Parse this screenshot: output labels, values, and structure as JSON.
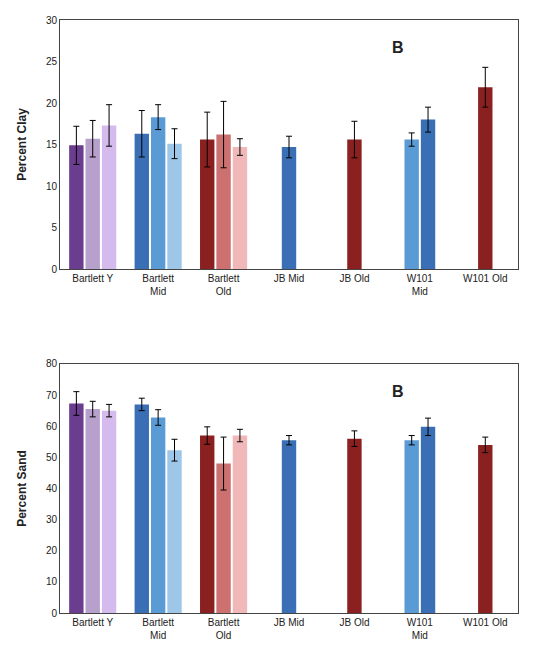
{
  "chart_data": [
    {
      "type": "bar",
      "title": "B",
      "ylabel": "Percent Clay",
      "categories": [
        "Bartlett Y",
        "Bartlett\nMid",
        "Bartlett\nOld",
        "JB Mid",
        "JB Old",
        "W101\nMid",
        "W101 Old"
      ],
      "series": [
        {
          "colors": [
            "#6a3d8f",
            "#3a6fb5",
            "#8b2020",
            "#3a6fb5",
            "#8b2020",
            "#5b9bd5",
            "#8b2020"
          ],
          "values": [
            14.9,
            16.3,
            15.6,
            14.7,
            15.6,
            15.6,
            21.9
          ],
          "errors": [
            2.3,
            2.8,
            3.3,
            1.3,
            2.2,
            0.8,
            2.4
          ]
        },
        {
          "colors": [
            "#b8a0cc",
            "#5b9bd5",
            "#cc7070",
            null,
            null,
            "#3a6fb5",
            null
          ],
          "values": [
            15.7,
            18.3,
            16.2,
            null,
            null,
            18.0,
            null
          ],
          "errors": [
            2.2,
            1.5,
            4.0,
            null,
            null,
            1.5,
            null
          ]
        },
        {
          "colors": [
            "#d4baed",
            "#9ec6e8",
            "#f0b8b8",
            null,
            null,
            null,
            null
          ],
          "values": [
            17.3,
            15.1,
            14.7,
            null,
            null,
            null,
            null
          ],
          "errors": [
            2.5,
            1.8,
            1.0,
            null,
            null,
            null,
            null
          ]
        }
      ],
      "ylim": [
        0,
        30
      ],
      "yticks": [
        0,
        5,
        10,
        15,
        20,
        25,
        30
      ],
      "grid": false
    },
    {
      "type": "bar",
      "title": "B",
      "ylabel": "Percent Sand",
      "categories": [
        "Bartlett Y",
        "Bartlett\nMid",
        "Bartlett\nOld",
        "JB Mid",
        "JB Old",
        "W101\nMid",
        "W101 Old"
      ],
      "series": [
        {
          "colors": [
            "#6a3d8f",
            "#3a6fb5",
            "#8b2020",
            "#3a6fb5",
            "#8b2020",
            "#5b9bd5",
            "#8b2020"
          ],
          "values": [
            67.3,
            67.0,
            57.0,
            55.5,
            56.0,
            55.5,
            54.0
          ],
          "errors": [
            3.8,
            2.0,
            2.8,
            1.5,
            2.5,
            1.5,
            2.5
          ]
        },
        {
          "colors": [
            "#b8a0cc",
            "#5b9bd5",
            "#cc7070",
            null,
            null,
            "#3a6fb5",
            null
          ],
          "values": [
            65.5,
            62.8,
            48.0,
            null,
            null,
            59.8,
            null
          ],
          "errors": [
            2.5,
            2.5,
            8.5,
            null,
            null,
            2.8,
            null
          ]
        },
        {
          "colors": [
            "#d4baed",
            "#9ec6e8",
            "#f0b8b8",
            null,
            null,
            null,
            null
          ],
          "values": [
            65.0,
            52.3,
            57.0,
            null,
            null,
            null,
            null
          ],
          "errors": [
            2.0,
            3.5,
            2.0,
            null,
            null,
            null,
            null
          ]
        }
      ],
      "ylim": [
        0,
        80
      ],
      "yticks": [
        0,
        10,
        20,
        30,
        40,
        50,
        60,
        70,
        80
      ],
      "grid": false
    }
  ]
}
